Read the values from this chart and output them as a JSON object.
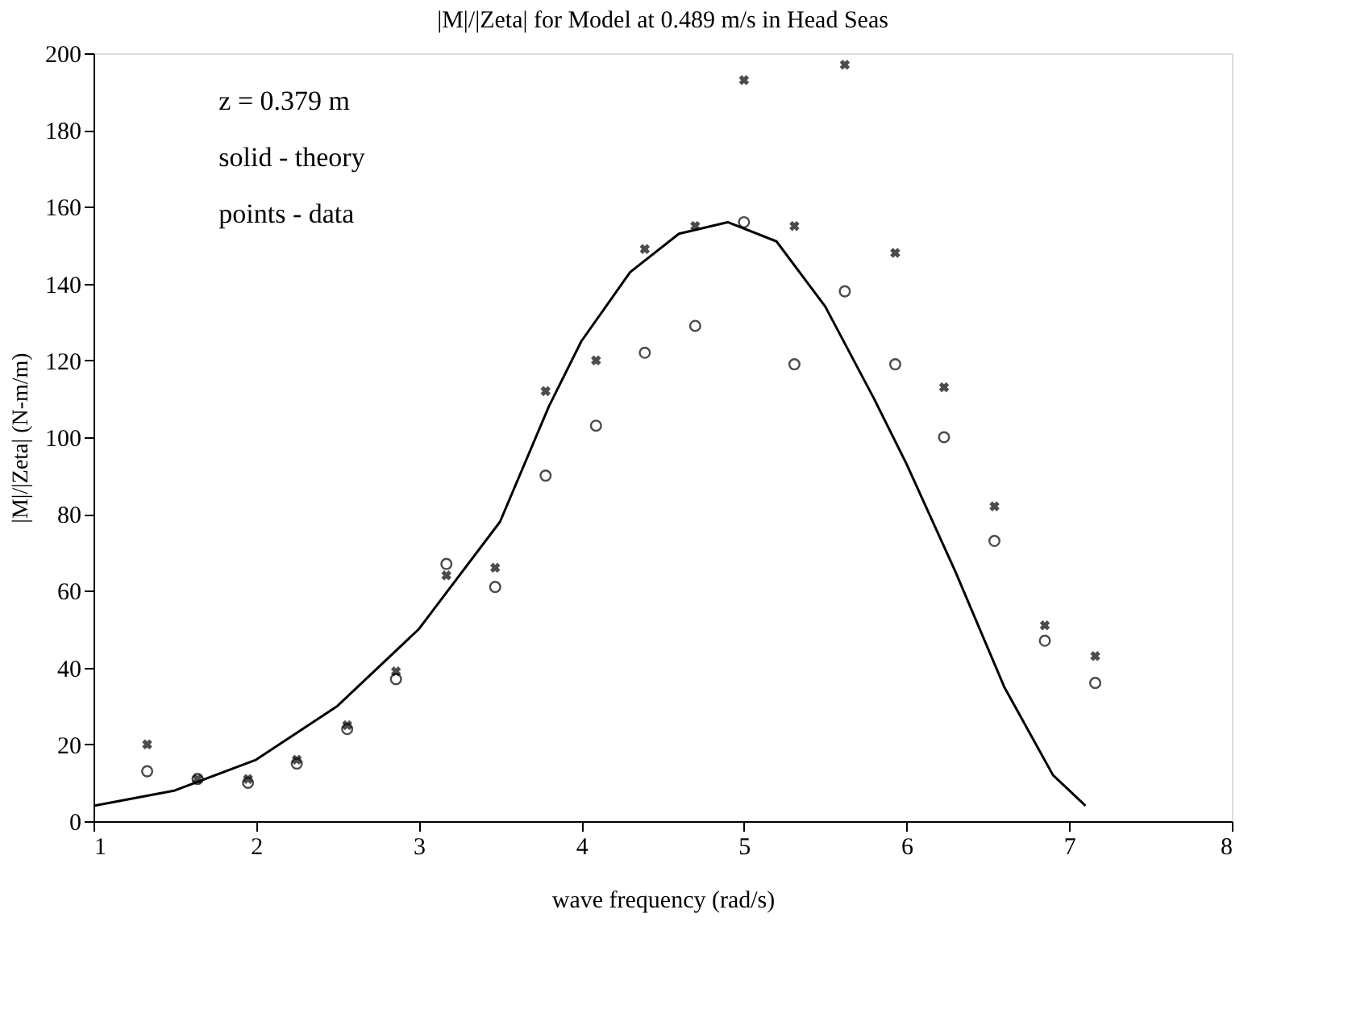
{
  "chart_data": {
    "type": "scatter",
    "title": "|M|/|Zeta| for Model at 0.489 m/s in Head Seas",
    "xlabel": "wave frequency (rad/s)",
    "ylabel": "|M|/|Zeta| (N-m/m)",
    "xlim": [
      1,
      8
    ],
    "ylim": [
      0,
      200
    ],
    "xticks": [
      1,
      2,
      3,
      4,
      5,
      6,
      7,
      8
    ],
    "yticks": [
      0,
      20,
      40,
      60,
      80,
      100,
      120,
      140,
      160,
      180,
      200
    ],
    "grid": false,
    "legend": false,
    "annotations": [
      "z = 0.379 m",
      "solid - theory",
      "points - data"
    ],
    "series": [
      {
        "type": "line",
        "color": "#000000",
        "marker": "none",
        "line_style": "solid",
        "x": [
          1,
          1.5,
          2,
          2.5,
          3,
          3.5,
          3.8,
          4,
          4.3,
          4.6,
          4.9,
          5.2,
          5.5,
          5.8,
          6.0,
          6.3,
          6.6,
          6.9,
          7.1
        ],
        "values": [
          4,
          8,
          16,
          30,
          50,
          78,
          108,
          125,
          143,
          153,
          156,
          151,
          134,
          110,
          93,
          65,
          35,
          12,
          4
        ]
      },
      {
        "color": "#000000",
        "marker": "cross",
        "x": [
          1.33,
          1.64,
          1.95,
          2.25,
          2.56,
          2.86,
          3.17,
          3.47,
          3.78,
          4.09,
          4.39,
          4.7,
          5.0,
          5.31,
          5.62,
          5.93,
          6.23,
          6.54,
          6.85,
          7.16
        ],
        "values": [
          20,
          11,
          11,
          16,
          25,
          39,
          64,
          66,
          112,
          120,
          149,
          155,
          193,
          155,
          197,
          148,
          113,
          82,
          51,
          43
        ]
      },
      {
        "color": "#000000",
        "marker": "circle",
        "x": [
          1.33,
          1.64,
          1.95,
          2.25,
          2.56,
          2.86,
          3.17,
          3.47,
          3.78,
          4.09,
          4.39,
          4.7,
          5.0,
          5.31,
          5.62,
          5.93,
          6.23,
          6.54,
          6.85,
          7.16
        ],
        "values": [
          13,
          11,
          10,
          15,
          24,
          37,
          67,
          61,
          90,
          103,
          122,
          129,
          156,
          119,
          138,
          119,
          100,
          73,
          47,
          36
        ]
      }
    ]
  }
}
